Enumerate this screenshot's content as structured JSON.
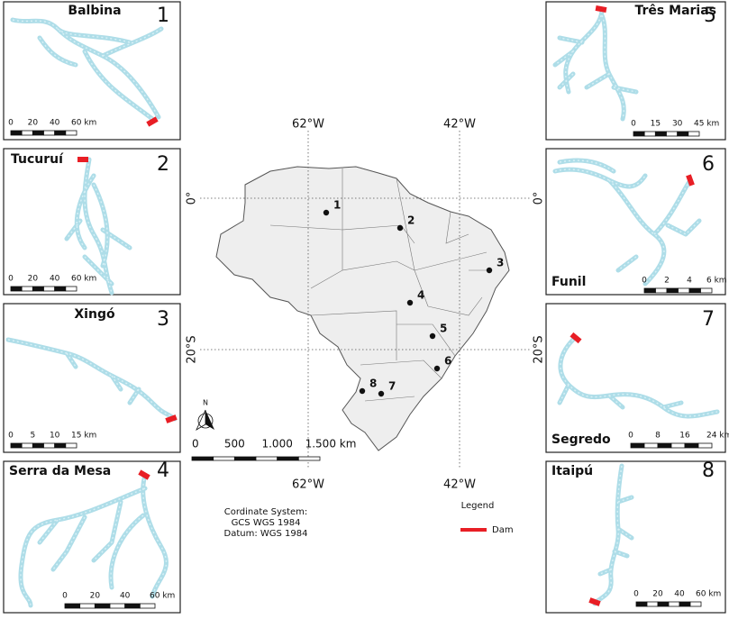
{
  "panels": [
    {
      "number": "1",
      "name": "Balbina",
      "scale": [
        "0",
        "20",
        "40",
        "60 km"
      ]
    },
    {
      "number": "2",
      "name": "Tucuruí",
      "scale": [
        "0",
        "20",
        "40",
        "60 km"
      ]
    },
    {
      "number": "3",
      "name": "Xingó",
      "scale": [
        "0",
        "5",
        "10",
        "15 km"
      ]
    },
    {
      "number": "4",
      "name": "Serra da Mesa",
      "scale": [
        "0",
        "20",
        "40",
        "60 km"
      ]
    },
    {
      "number": "5",
      "name": "Três Marias",
      "scale": [
        "0",
        "15",
        "30",
        "45 km"
      ]
    },
    {
      "number": "6",
      "name": "Funil",
      "scale": [
        "0",
        "2",
        "4",
        "6 km"
      ]
    },
    {
      "number": "7",
      "name": "Segredo",
      "scale": [
        "0",
        "8",
        "16",
        "24 km"
      ]
    },
    {
      "number": "8",
      "name": "Itaipú",
      "scale": [
        "0",
        "20",
        "40",
        "60 km"
      ]
    }
  ],
  "map": {
    "lon_labels_top": [
      "62°W",
      "42°W"
    ],
    "lon_labels_bottom": [
      "62°W",
      "42°W"
    ],
    "lat_labels_left": [
      "0°",
      "20°S"
    ],
    "lat_labels_right": [
      "0°",
      "20°S"
    ],
    "points": [
      "1",
      "2",
      "3",
      "4",
      "5",
      "6",
      "7",
      "8"
    ],
    "scale": [
      "0",
      "500",
      "1.000",
      "1.500 km"
    ],
    "north": "N",
    "coordinate_system": [
      "Cordinate System:",
      "GCS WGS 1984",
      "Datum: WGS 1984"
    ],
    "legend_title": "Legend",
    "legend_item": "Dam"
  }
}
